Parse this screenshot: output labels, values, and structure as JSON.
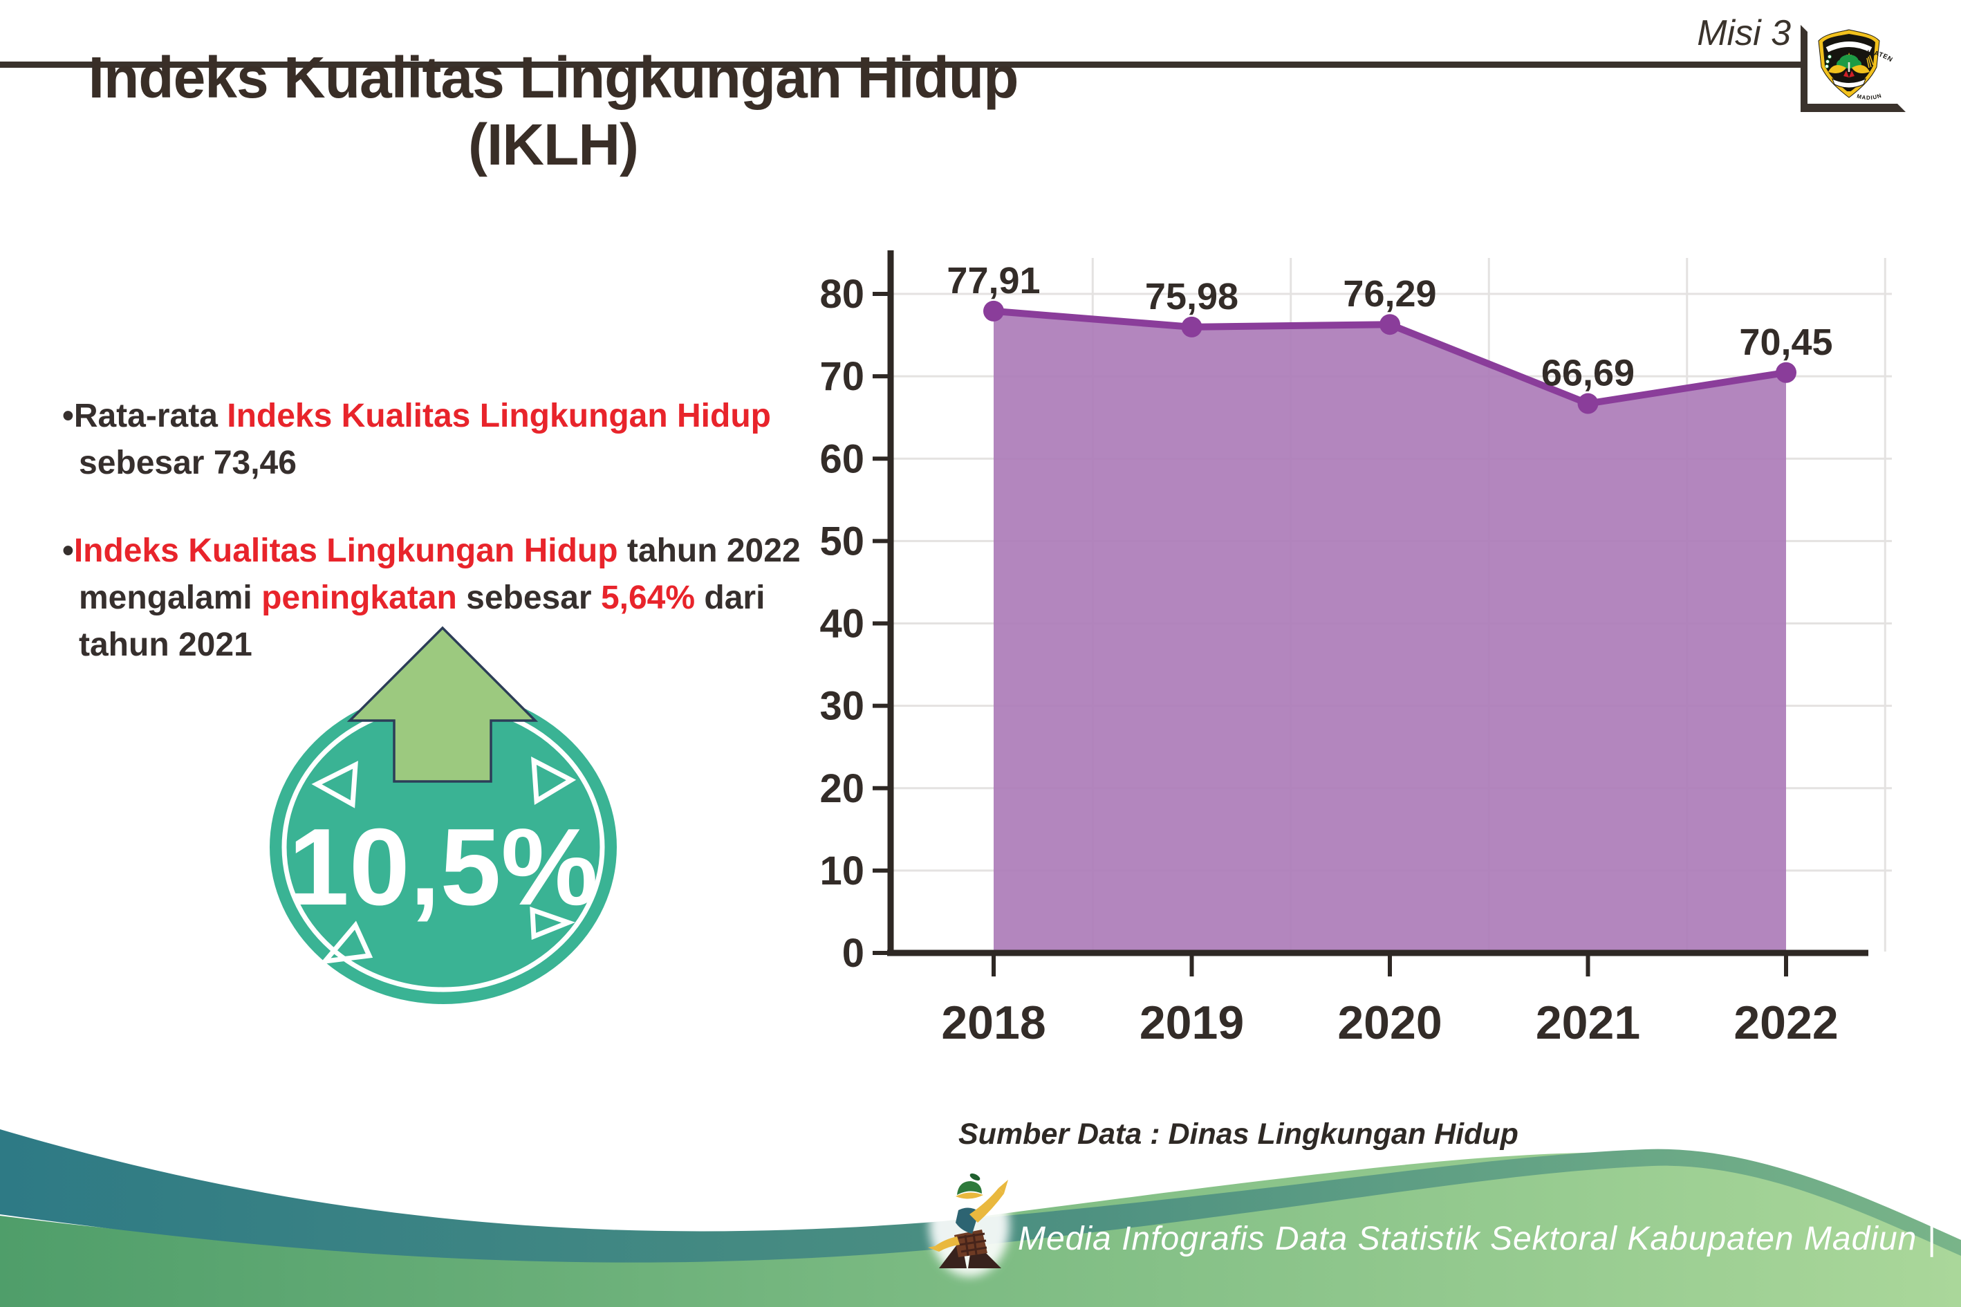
{
  "header": {
    "misi_label": "Misi 3",
    "title": "Indeks Kualitas Lingkungan Hidup (IKLH)",
    "logo": {
      "top_text": "KABUPATEN",
      "bottom_text": "MADIUN"
    }
  },
  "bullets": [
    {
      "marker": "•",
      "segments": [
        {
          "t": "Rata-rata ",
          "c": "dark"
        },
        {
          "t": "Indeks Kualitas Lingkungan Hidup",
          "c": "red",
          "br": true
        },
        {
          "t": "sebesar 73,46",
          "c": "dark"
        }
      ]
    },
    {
      "marker": "•",
      "segments": [
        {
          "t": "Indeks Kualitas Lingkungan Hidup",
          "c": "red"
        },
        {
          "t": " tahun 2022",
          "c": "dark",
          "br": true
        },
        {
          "t": "mengalami ",
          "c": "dark"
        },
        {
          "t": "peningkatan",
          "c": "red"
        },
        {
          "t": " sebesar ",
          "c": "dark"
        },
        {
          "t": "5,64%",
          "c": "red"
        },
        {
          "t": " dari",
          "c": "dark",
          "br": true
        },
        {
          "t": "tahun 2021",
          "c": "dark"
        }
      ]
    }
  ],
  "badge": {
    "value": "10,5%",
    "icon": "up-arrow",
    "circle_color": "#3ab394",
    "arrow_color": "#9cc97f"
  },
  "chart_data": {
    "type": "area",
    "title": "",
    "xlabel": "",
    "ylabel": "",
    "categories": [
      "2018",
      "2019",
      "2020",
      "2021",
      "2022"
    ],
    "values": [
      77.91,
      75.98,
      76.29,
      66.69,
      70.45
    ],
    "value_labels": [
      "77,91",
      "75,98",
      "76,29",
      "66,69",
      "70,45"
    ],
    "ylim": [
      0,
      80
    ],
    "yticks": [
      0,
      10,
      20,
      30,
      40,
      50,
      60,
      70,
      80
    ],
    "grid": true,
    "legend": "none",
    "line_color": "#8a3d9a",
    "fill_color": "#ad7cb9",
    "axis_color": "#2e2824",
    "grid_color": "#e4e2e1",
    "label_color": "#332c28"
  },
  "source_note": "Sumber Data : Dinas Lingkungan Hidup",
  "footer": {
    "text": "Media Infografis Data Statistik Sektoral Kabupaten Madiun |"
  }
}
